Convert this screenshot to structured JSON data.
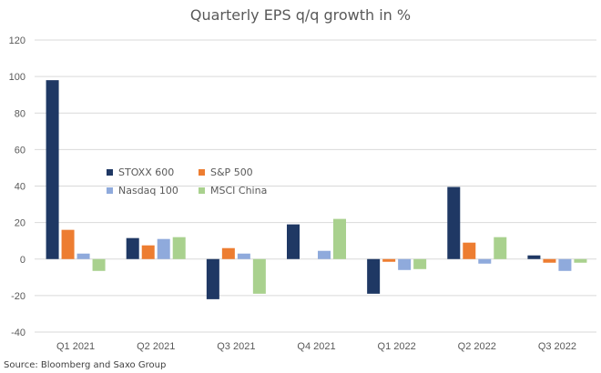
{
  "chart_data": {
    "type": "bar",
    "title": "Quarterly EPS q/q growth in %",
    "xlabel": "",
    "ylabel": "",
    "ylim": [
      -40,
      120
    ],
    "yticks": [
      -40,
      -20,
      0,
      20,
      40,
      60,
      80,
      100,
      120
    ],
    "grid": true,
    "legend_position": "center-left",
    "categories": [
      "Q1 2021",
      "Q2 2021",
      "Q3 2021",
      "Q4 2021",
      "Q1 2022",
      "Q2 2022",
      "Q3 2022"
    ],
    "series": [
      {
        "name": "STOXX 600",
        "color": "#1f3864",
        "values": [
          98,
          11.5,
          -22,
          19,
          -19,
          39.5,
          2
        ]
      },
      {
        "name": "S&P 500",
        "color": "#ed7d31",
        "values": [
          16,
          7.5,
          6,
          0,
          -1.5,
          9,
          -2
        ]
      },
      {
        "name": "Nasdaq 100",
        "color": "#8faadc",
        "values": [
          3,
          11,
          3,
          4.5,
          -6,
          -2.5,
          -6.5
        ]
      },
      {
        "name": "MSCI China",
        "color": "#a9d18e",
        "values": [
          -6.5,
          12,
          -19,
          22,
          -5.5,
          12,
          -2
        ]
      }
    ],
    "source": "Source: Bloomberg and Saxo Group"
  }
}
